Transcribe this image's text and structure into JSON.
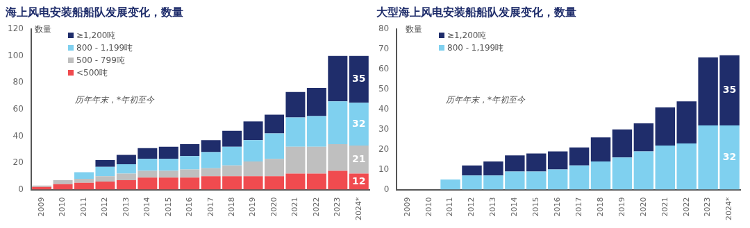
{
  "chart_data": [
    {
      "type": "bar",
      "title": "海上风电安装船船队发展变化，数量",
      "ylabel": "数量",
      "annotations": [
        "历年年末，*年初至今"
      ],
      "categories": [
        "2009",
        "2010",
        "2011",
        "2012",
        "2013",
        "2014",
        "2015",
        "2016",
        "2017",
        "2018",
        "2019",
        "2020",
        "2021",
        "2022",
        "2023",
        "2024*"
      ],
      "stacked": true,
      "ylim": [
        0,
        120
      ],
      "yticks": [
        0,
        20,
        40,
        60,
        80,
        100,
        120
      ],
      "legend": "top left",
      "series": [
        {
          "name": "<500吨",
          "color": "#f04b4f",
          "values": [
            2,
            4,
            5,
            6,
            7,
            9,
            9,
            9,
            10,
            10,
            10,
            10,
            12,
            12,
            14,
            12
          ],
          "value_labels": [
            null,
            null,
            null,
            null,
            null,
            null,
            null,
            null,
            null,
            null,
            null,
            null,
            null,
            null,
            null,
            "12"
          ]
        },
        {
          "name": "500 - 799吨",
          "color": "#bfbfbf",
          "values": [
            1,
            3,
            3,
            4,
            5,
            5,
            5,
            6,
            6,
            8,
            11,
            13,
            20,
            20,
            20,
            21
          ],
          "value_labels": [
            null,
            null,
            null,
            null,
            null,
            null,
            null,
            null,
            null,
            null,
            null,
            null,
            null,
            null,
            null,
            "21"
          ]
        },
        {
          "name": "800 - 1,199吨",
          "color": "#7fd0ef",
          "values": [
            null,
            null,
            5,
            7,
            7,
            9,
            9,
            10,
            12,
            14,
            16,
            19,
            22,
            23,
            32,
            32
          ],
          "value_labels": [
            null,
            null,
            null,
            null,
            null,
            null,
            null,
            null,
            null,
            null,
            null,
            null,
            null,
            null,
            null,
            "32"
          ]
        },
        {
          "name": "≥1,200吨",
          "color": "#1f2d6b",
          "values": [
            null,
            null,
            null,
            5,
            7,
            8,
            9,
            9,
            9,
            12,
            14,
            14,
            19,
            21,
            34,
            35
          ],
          "value_labels": [
            null,
            null,
            null,
            null,
            null,
            null,
            null,
            null,
            null,
            null,
            null,
            null,
            null,
            null,
            null,
            "35"
          ]
        }
      ]
    },
    {
      "type": "bar",
      "title": "大型海上风电安装船船队发展变化，数量",
      "ylabel": "数量",
      "annotations": [
        "历年年末，*年初至今"
      ],
      "categories": [
        "2009",
        "2010",
        "2011",
        "2012",
        "2013",
        "2014",
        "2015",
        "2016",
        "2017",
        "2018",
        "2019",
        "2020",
        "2021",
        "2022",
        "2023",
        "2024*"
      ],
      "stacked": true,
      "ylim": [
        0,
        80
      ],
      "yticks": [
        0,
        10,
        20,
        30,
        40,
        50,
        60,
        70,
        80
      ],
      "legend": "top left",
      "series": [
        {
          "name": "800 - 1,199吨",
          "color": "#7fd0ef",
          "values": [
            null,
            null,
            5,
            7,
            7,
            9,
            9,
            10,
            12,
            14,
            16,
            19,
            22,
            23,
            32,
            32
          ],
          "value_labels": [
            null,
            null,
            null,
            null,
            null,
            null,
            null,
            null,
            null,
            null,
            null,
            null,
            null,
            null,
            null,
            "32"
          ]
        },
        {
          "name": "≥1,200吨",
          "color": "#1f2d6b",
          "values": [
            null,
            null,
            null,
            5,
            7,
            8,
            9,
            9,
            9,
            12,
            14,
            14,
            19,
            21,
            34,
            35
          ],
          "value_labels": [
            null,
            null,
            null,
            null,
            null,
            null,
            null,
            null,
            null,
            null,
            null,
            null,
            null,
            null,
            null,
            "35"
          ]
        }
      ]
    }
  ]
}
